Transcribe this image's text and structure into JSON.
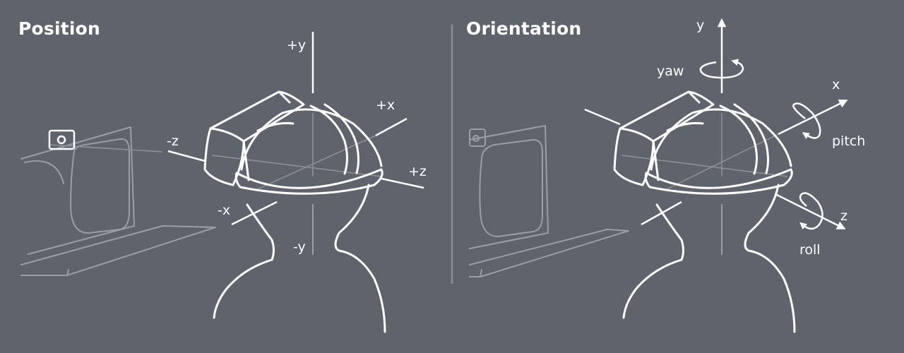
{
  "panels": {
    "position": {
      "title": "Position",
      "labels": {
        "py": "+y",
        "ny": "-y",
        "px": "+x",
        "nx": "-x",
        "pz": "+z",
        "nz": "-z"
      }
    },
    "orientation": {
      "title": "Orientation",
      "labels": {
        "y": "y",
        "x": "x",
        "z": "z",
        "yaw": "yaw",
        "pitch": "pitch",
        "roll": "roll"
      }
    }
  },
  "colors": {
    "background": "#5f636b",
    "line": "#ffffff",
    "secondary": "#9a9ea6"
  }
}
